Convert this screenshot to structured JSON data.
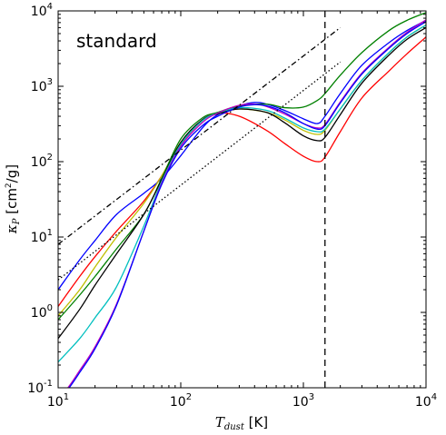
{
  "chart_data": {
    "type": "line",
    "title": "",
    "annotation": "standard",
    "xlabel": {
      "math": "T",
      "sub": "dust",
      "unit": " [K]"
    },
    "ylabel": {
      "math": "κ",
      "sub": "P",
      "unit_pre": " [cm",
      "unit_sup": "2",
      "unit_post": "/g]"
    },
    "x_scale": "log",
    "y_scale": "log",
    "xlim": [
      10,
      10000
    ],
    "ylim": [
      0.1,
      10000
    ],
    "x_ticks": [
      {
        "value": 10,
        "base": "10",
        "exp": "1"
      },
      {
        "value": 100,
        "base": "10",
        "exp": "2"
      },
      {
        "value": 1000,
        "base": "10",
        "exp": "3"
      },
      {
        "value": 10000,
        "base": "10",
        "exp": "4"
      }
    ],
    "y_ticks": [
      {
        "value": 0.1,
        "base": "10",
        "exp": "-1"
      },
      {
        "value": 1,
        "base": "10",
        "exp": "0"
      },
      {
        "value": 10,
        "base": "10",
        "exp": "1"
      },
      {
        "value": 100,
        "base": "10",
        "exp": "2"
      },
      {
        "value": 1000,
        "base": "10",
        "exp": "3"
      },
      {
        "value": 10000,
        "base": "10",
        "exp": "4"
      }
    ],
    "vline": {
      "x": 1500,
      "style": "dashed",
      "color": "#000000"
    },
    "series": [
      {
        "color": "#ff0000",
        "style": "solid",
        "x": [
          10,
          15,
          20,
          30,
          50,
          70,
          100,
          150,
          200,
          300,
          500,
          700,
          1000,
          1300,
          1500,
          2000,
          3000,
          5000,
          7000,
          10000
        ],
        "y": [
          1.2,
          3,
          5.5,
          12,
          30,
          65,
          170,
          350,
          440,
          400,
          260,
          175,
          118,
          100,
          115,
          250,
          700,
          1600,
          2700,
          4500
        ]
      },
      {
        "color": "#0000ff",
        "style": "solid",
        "x": [
          10,
          15,
          20,
          30,
          50,
          70,
          100,
          150,
          200,
          300,
          400,
          500,
          700,
          1000,
          1300,
          1500,
          2000,
          3000,
          5000,
          7000,
          10000
        ],
        "y": [
          2,
          5,
          9,
          20,
          38,
          60,
          120,
          280,
          420,
          550,
          610,
          580,
          480,
          370,
          320,
          400,
          800,
          1900,
          3800,
          5500,
          7500
        ]
      },
      {
        "color": "#bfbf00",
        "style": "solid",
        "x": [
          10,
          15,
          20,
          30,
          50,
          70,
          100,
          150,
          200,
          300,
          500,
          700,
          1000,
          1300,
          1500,
          2000,
          3000,
          5000,
          7000,
          10000
        ],
        "y": [
          0.9,
          2,
          4,
          10,
          28,
          65,
          180,
          350,
          440,
          500,
          450,
          360,
          260,
          230,
          260,
          500,
          1200,
          2800,
          4500,
          6500
        ]
      },
      {
        "color": "#008000",
        "style": "solid",
        "x": [
          10,
          15,
          20,
          30,
          50,
          70,
          100,
          150,
          200,
          300,
          500,
          700,
          1000,
          1300,
          1500,
          2000,
          3000,
          5000,
          7000,
          10000
        ],
        "y": [
          0.8,
          1.7,
          3,
          7,
          20,
          60,
          200,
          380,
          450,
          550,
          580,
          520,
          530,
          650,
          800,
          1400,
          2800,
          5500,
          7500,
          9500
        ]
      },
      {
        "color": "#000000",
        "style": "solid",
        "x": [
          10,
          15,
          20,
          30,
          50,
          70,
          100,
          150,
          200,
          300,
          500,
          700,
          1000,
          1300,
          1500,
          2000,
          3000,
          5000,
          7000,
          10000
        ],
        "y": [
          0.45,
          1.1,
          2.3,
          6,
          20,
          58,
          180,
          360,
          430,
          500,
          450,
          330,
          220,
          190,
          210,
          420,
          1100,
          2600,
          4200,
          6000
        ]
      },
      {
        "color": "#00bfbf",
        "style": "solid",
        "x": [
          10,
          15,
          20,
          30,
          50,
          70,
          100,
          150,
          200,
          300,
          500,
          700,
          1000,
          1300,
          1500,
          2000,
          3000,
          5000,
          7000,
          10000
        ],
        "y": [
          0.22,
          0.45,
          0.85,
          2.2,
          14,
          55,
          170,
          350,
          440,
          520,
          480,
          380,
          280,
          250,
          270,
          500,
          1200,
          2800,
          4500,
          6500
        ]
      },
      {
        "color": "#bf00bf",
        "style": "solid",
        "x": [
          10,
          12,
          15,
          20,
          30,
          50,
          70,
          100,
          150,
          200,
          300,
          400,
          500,
          700,
          1000,
          1300,
          1500,
          2000,
          3000,
          5000,
          7000,
          10000
        ],
        "y": [
          0.075,
          0.1,
          0.17,
          0.35,
          1.3,
          12,
          52,
          160,
          330,
          440,
          560,
          580,
          540,
          430,
          320,
          280,
          310,
          620,
          1500,
          3300,
          5200,
          7600
        ]
      },
      {
        "color": "#0000ff",
        "style": "solid",
        "x": [
          10,
          12,
          15,
          20,
          30,
          50,
          70,
          100,
          150,
          200,
          300,
          400,
          500,
          700,
          1000,
          1300,
          1500,
          2000,
          3000,
          5000,
          7000,
          10000
        ],
        "y": [
          0.07,
          0.095,
          0.16,
          0.33,
          1.25,
          12,
          50,
          150,
          300,
          400,
          530,
          570,
          550,
          450,
          320,
          270,
          300,
          600,
          1450,
          3200,
          5000,
          7200
        ]
      },
      {
        "color": "#000000",
        "style": "dashdot",
        "x": [
          10,
          2000
        ],
        "y": [
          8,
          6000
        ]
      },
      {
        "color": "#000000",
        "style": "dotted",
        "x": [
          10,
          2000
        ],
        "y": [
          2.7,
          2100
        ]
      }
    ]
  }
}
